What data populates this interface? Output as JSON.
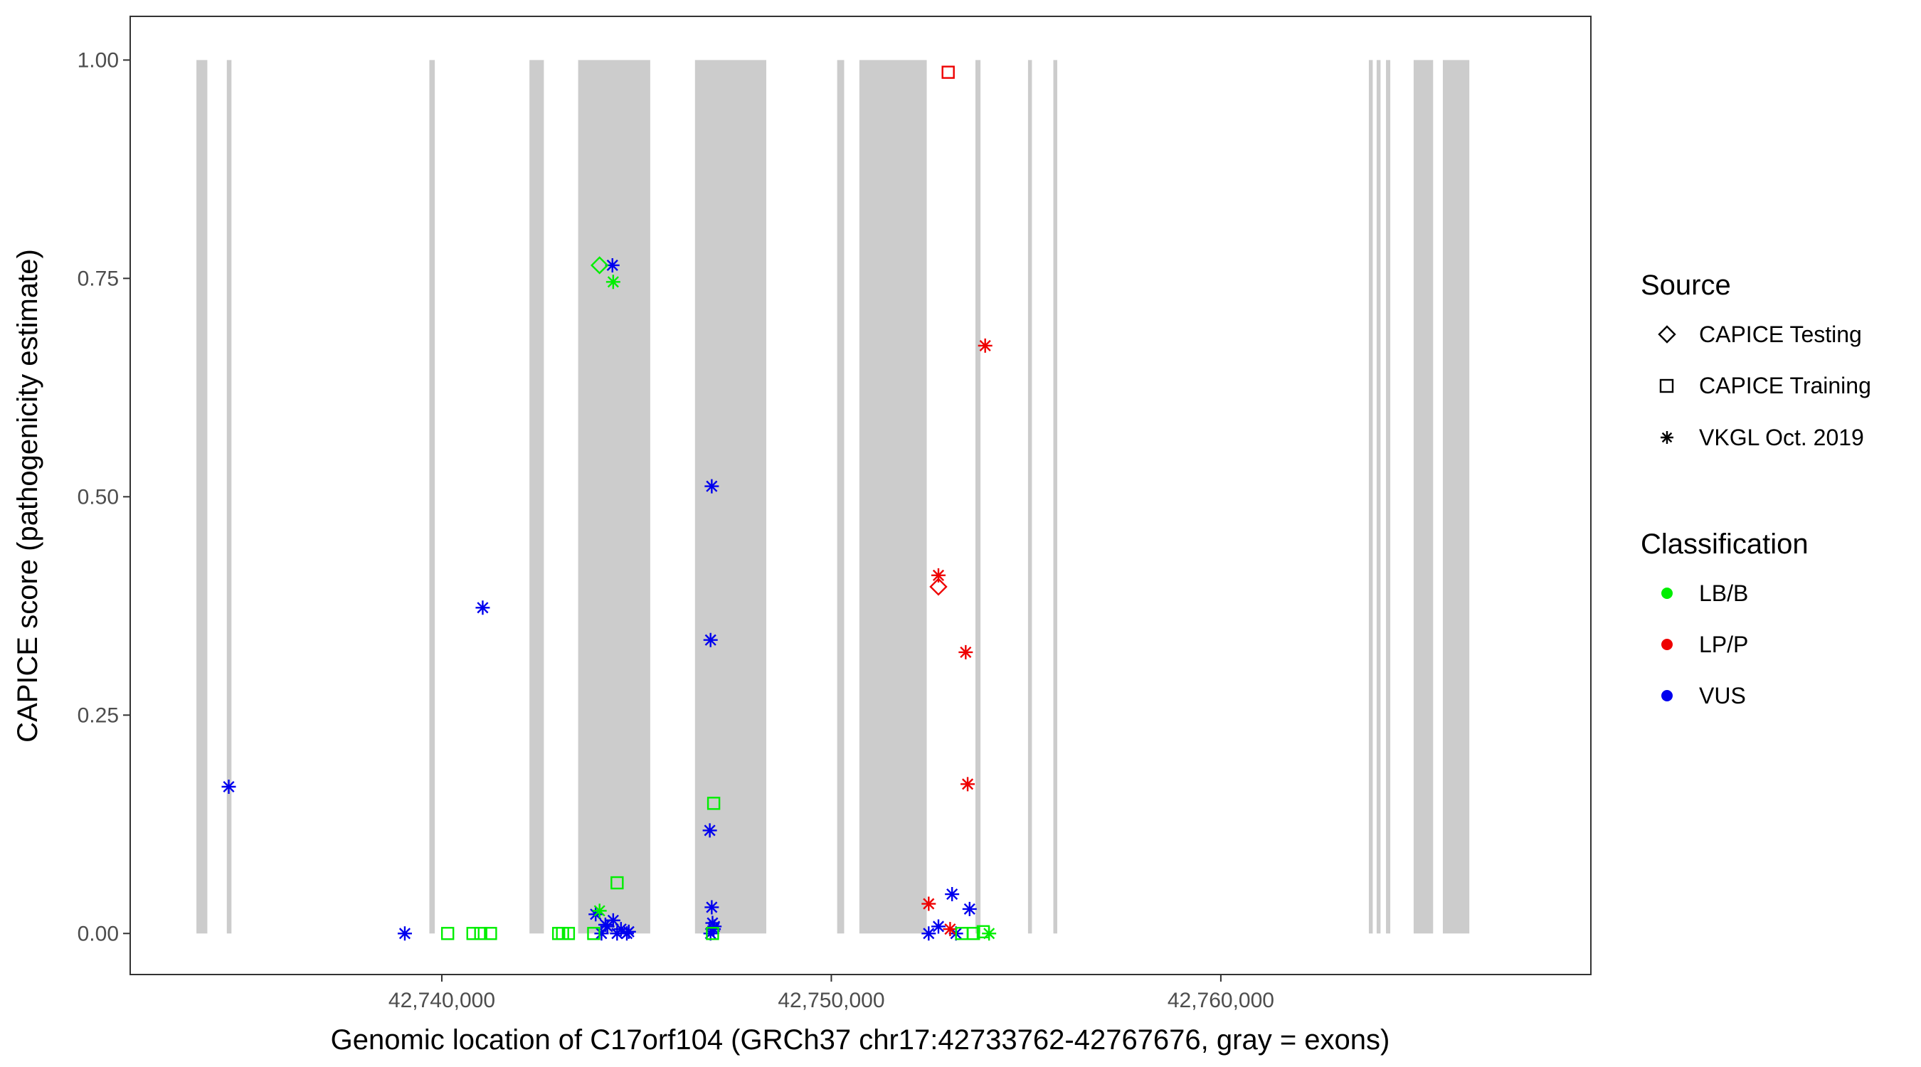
{
  "chart_data": {
    "type": "scatter",
    "xlabel": "Genomic location of C17orf104 (GRCh37 chr17:42733762-42767676, gray = exons)",
    "ylabel": "CAPICE score (pathogenicity estimate)",
    "xlim": [
      42732000,
      42769500
    ],
    "ylim": [
      -0.047,
      1.05
    ],
    "x_ticks": [
      42740000,
      42750000,
      42760000
    ],
    "x_tick_labels": [
      "42,740,000",
      "42,750,000",
      "42,760,000"
    ],
    "y_ticks": [
      0,
      0.25,
      0.5,
      0.75,
      1.0
    ],
    "y_tick_labels": [
      "0.00",
      "0.25",
      "0.50",
      "0.75",
      "1.00"
    ],
    "grid": false,
    "exons": [
      [
        42733700,
        42733980
      ],
      [
        42734480,
        42734600
      ],
      [
        42739680,
        42739820
      ],
      [
        42742250,
        42742620
      ],
      [
        42743500,
        42745350
      ],
      [
        42746500,
        42748330
      ],
      [
        42750150,
        42750330
      ],
      [
        42750720,
        42752450
      ],
      [
        42753700,
        42753830
      ],
      [
        42755050,
        42755150
      ],
      [
        42755700,
        42755800
      ],
      [
        42763800,
        42763900
      ],
      [
        42764000,
        42764100
      ],
      [
        42764240,
        42764350
      ],
      [
        42764950,
        42765450
      ],
      [
        42765700,
        42766380
      ]
    ],
    "exon_color": "#cccccc",
    "series": [
      {
        "source": "VKGL Oct. 2019",
        "classification": "VUS",
        "points": [
          [
            42734530,
            0.168
          ],
          [
            42741050,
            0.373
          ],
          [
            42739050,
            0.0
          ],
          [
            42744380,
            0.765
          ],
          [
            42746930,
            0.512
          ],
          [
            42746900,
            0.336
          ],
          [
            42746880,
            0.118
          ],
          [
            42746930,
            0.03
          ],
          [
            42746950,
            0.012
          ],
          [
            42746980,
            0.005
          ],
          [
            42746900,
            0.0
          ],
          [
            42747000,
            0.008
          ],
          [
            42743950,
            0.022
          ],
          [
            42744100,
            0.0
          ],
          [
            42744250,
            0.008
          ],
          [
            42744400,
            0.015
          ],
          [
            42744600,
            0.005
          ],
          [
            42744750,
            0.0
          ],
          [
            42744200,
            0.01
          ],
          [
            42744500,
            0.0
          ],
          [
            42744800,
            0.002
          ],
          [
            42752500,
            0.0
          ],
          [
            42752750,
            0.008
          ],
          [
            42753100,
            0.045
          ],
          [
            42753550,
            0.028
          ],
          [
            42753200,
            0.0
          ]
        ]
      },
      {
        "source": "VKGL Oct. 2019",
        "classification": "LB/B",
        "points": [
          [
            42744400,
            0.746
          ],
          [
            42744050,
            0.026
          ],
          [
            42754050,
            0.0
          ]
        ]
      },
      {
        "source": "VKGL Oct. 2019",
        "classification": "LP/P",
        "points": [
          [
            42752750,
            0.41
          ],
          [
            42753450,
            0.322
          ],
          [
            42753500,
            0.171
          ],
          [
            42752500,
            0.034
          ],
          [
            42753050,
            0.005
          ],
          [
            42753950,
            0.673
          ]
        ]
      },
      {
        "source": "CAPICE Testing",
        "classification": "LB/B",
        "points": [
          [
            42744050,
            0.765
          ]
        ]
      },
      {
        "source": "CAPICE Testing",
        "classification": "LP/P",
        "points": [
          [
            42752750,
            0.397
          ]
        ]
      },
      {
        "source": "CAPICE Training",
        "classification": "LP/P",
        "points": [
          [
            42753000,
            0.986
          ]
        ]
      },
      {
        "source": "CAPICE Training",
        "classification": "LB/B",
        "points": [
          [
            42746980,
            0.149
          ],
          [
            42744500,
            0.058
          ],
          [
            42740150,
            0.0
          ],
          [
            42740800,
            0.0
          ],
          [
            42741000,
            0.0
          ],
          [
            42741250,
            0.0
          ],
          [
            42743000,
            0.0
          ],
          [
            42743100,
            0.0
          ],
          [
            42743250,
            0.0
          ],
          [
            42743900,
            0.0
          ],
          [
            42746950,
            0.0
          ],
          [
            42753350,
            0.0
          ],
          [
            42753650,
            0.0
          ],
          [
            42753900,
            0.002
          ]
        ]
      }
    ],
    "legend": {
      "placement": "right",
      "source_title": "Source",
      "source_items": [
        {
          "label": "CAPICE Testing",
          "shape": "diamond"
        },
        {
          "label": "CAPICE Training",
          "shape": "square"
        },
        {
          "label": "VKGL Oct. 2019",
          "shape": "asterisk"
        }
      ],
      "class_title": "Classification",
      "class_items": [
        {
          "label": "LB/B",
          "color": "#00ee00"
        },
        {
          "label": "LP/P",
          "color": "#ee0000"
        },
        {
          "label": "VUS",
          "color": "#0000ee"
        }
      ]
    },
    "colors": {
      "LB/B": "#00ee00",
      "LP/P": "#ee0000",
      "VUS": "#0000ee"
    }
  }
}
